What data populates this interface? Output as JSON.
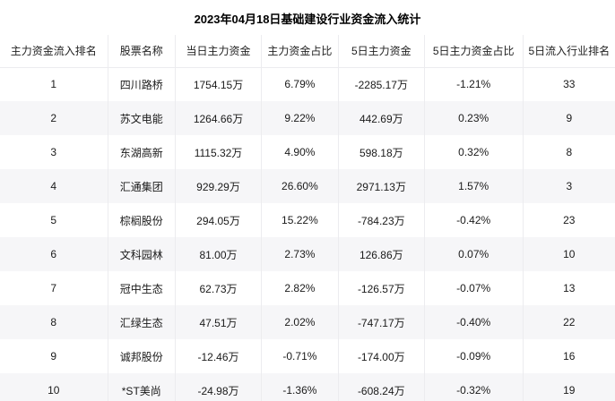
{
  "title": "2023年04月18日基础建设行业资金流入统计",
  "table": {
    "columns": [
      "主力资金流入排名",
      "股票名称",
      "当日主力资金",
      "主力资金占比",
      "5日主力资金",
      "5日主力资金占比",
      "5日流入行业排名"
    ],
    "rows": [
      [
        "1",
        "四川路桥",
        "1754.15万",
        "6.79%",
        "-2285.17万",
        "-1.21%",
        "33"
      ],
      [
        "2",
        "苏文电能",
        "1264.66万",
        "9.22%",
        "442.69万",
        "0.23%",
        "9"
      ],
      [
        "3",
        "东湖高新",
        "1115.32万",
        "4.90%",
        "598.18万",
        "0.32%",
        "8"
      ],
      [
        "4",
        "汇通集团",
        "929.29万",
        "26.60%",
        "2971.13万",
        "1.57%",
        "3"
      ],
      [
        "5",
        "棕榈股份",
        "294.05万",
        "15.22%",
        "-784.23万",
        "-0.42%",
        "23"
      ],
      [
        "6",
        "文科园林",
        "81.00万",
        "2.73%",
        "126.86万",
        "0.07%",
        "10"
      ],
      [
        "7",
        "冠中生态",
        "62.73万",
        "2.82%",
        "-126.57万",
        "-0.07%",
        "13"
      ],
      [
        "8",
        "汇绿生态",
        "47.51万",
        "2.02%",
        "-747.17万",
        "-0.40%",
        "22"
      ],
      [
        "9",
        "诚邦股份",
        "-12.46万",
        "-0.71%",
        "-174.00万",
        "-0.09%",
        "16"
      ],
      [
        "10",
        "*ST美尚",
        "-24.98万",
        "-1.36%",
        "-608.24万",
        "-0.32%",
        "19"
      ]
    ]
  },
  "chart_data": {
    "type": "table",
    "title": "2023年04月18日基础建设行业资金流入统计",
    "columns": [
      "主力资金流入排名",
      "股票名称",
      "当日主力资金",
      "主力资金占比",
      "5日主力资金",
      "5日主力资金占比",
      "5日流入行业排名"
    ],
    "rows": [
      [
        1,
        "四川路桥",
        1754.15,
        6.79,
        -2285.17,
        -1.21,
        33
      ],
      [
        2,
        "苏文电能",
        1264.66,
        9.22,
        442.69,
        0.23,
        9
      ],
      [
        3,
        "东湖高新",
        1115.32,
        4.9,
        598.18,
        0.32,
        8
      ],
      [
        4,
        "汇通集团",
        929.29,
        26.6,
        2971.13,
        1.57,
        3
      ],
      [
        5,
        "棕榈股份",
        294.05,
        15.22,
        -784.23,
        -0.42,
        23
      ],
      [
        6,
        "文科园林",
        81.0,
        2.73,
        126.86,
        0.07,
        10
      ],
      [
        7,
        "冠中生态",
        62.73,
        2.82,
        -126.57,
        -0.07,
        13
      ],
      [
        8,
        "汇绿生态",
        47.51,
        2.02,
        -747.17,
        -0.4,
        22
      ],
      [
        9,
        "诚邦股份",
        -12.46,
        -0.71,
        -174.0,
        -0.09,
        16
      ],
      [
        10,
        "*ST美尚",
        -24.98,
        -1.36,
        -608.24,
        -0.32,
        19
      ]
    ],
    "units": {
      "当日主力资金": "万",
      "5日主力资金": "万",
      "主力资金占比": "%",
      "5日主力资金占比": "%"
    }
  },
  "colors": {
    "background": "#ffffff",
    "row_alt": "#f6f6f8",
    "grid_line": "#ececef",
    "text": "#1a1a1a"
  }
}
